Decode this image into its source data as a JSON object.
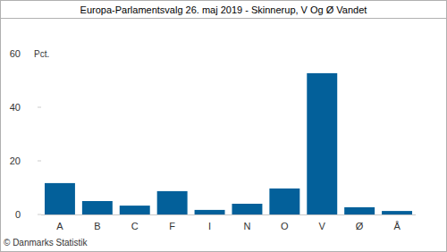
{
  "chart_data": {
    "type": "bar",
    "title": "Europa-Parlamentsvalg 26. maj 2019 - Skinnerup, V Og Ø Vandet",
    "y_label": "Pct.",
    "source": "© Danmarks Statistik",
    "categories": [
      "A",
      "B",
      "C",
      "F",
      "I",
      "N",
      "O",
      "V",
      "Ø",
      "Å"
    ],
    "values": [
      11.7,
      5.0,
      3.3,
      8.7,
      1.7,
      4.0,
      9.7,
      52.7,
      2.7,
      1.3
    ],
    "color": "#03609a",
    "ylim": [
      0,
      60
    ],
    "yticks": [
      0,
      20,
      40,
      60
    ],
    "grid": false
  }
}
